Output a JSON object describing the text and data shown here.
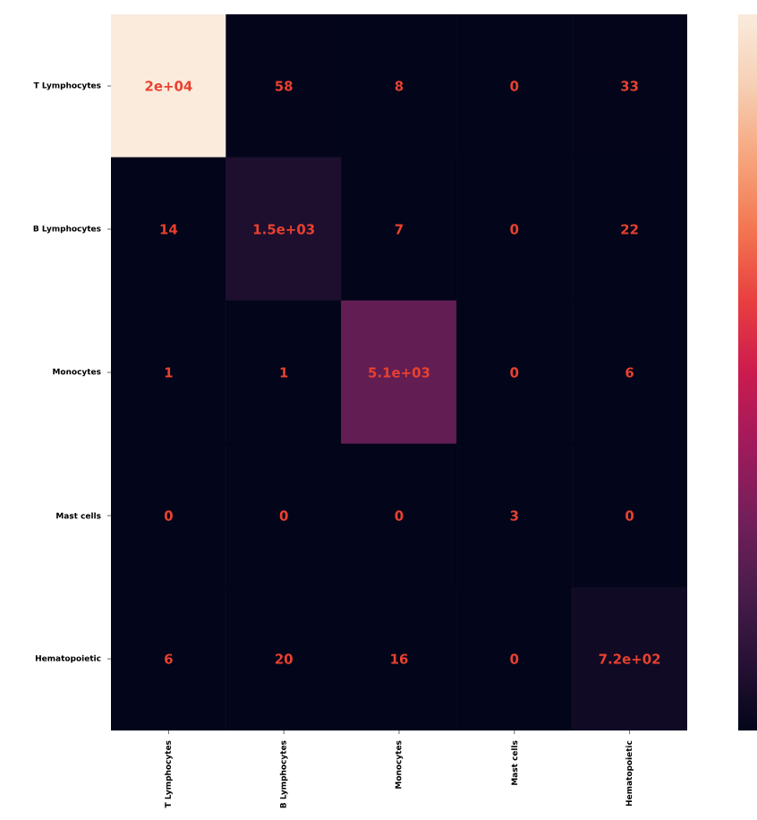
{
  "chart_data": {
    "type": "heatmap",
    "categories": [
      "T Lymphocytes",
      "B Lymphocytes",
      "Monocytes",
      "Mast cells",
      "Hematopoietic"
    ],
    "y_categories": [
      "T Lymphocytes",
      "B Lymphocytes",
      "Monocytes",
      "Mast cells",
      "Hematopoietic"
    ],
    "cells": [
      [
        20000,
        58,
        8,
        0,
        33
      ],
      [
        14,
        1500,
        7,
        0,
        22
      ],
      [
        1,
        1,
        5100,
        0,
        6
      ],
      [
        0,
        0,
        0,
        3,
        0
      ],
      [
        6,
        20,
        16,
        0,
        720
      ]
    ],
    "cell_labels": [
      [
        "2e+04",
        "58",
        "8",
        "0",
        "33"
      ],
      [
        "14",
        "1.5e+03",
        "7",
        "0",
        "22"
      ],
      [
        "1",
        "1",
        "5.1e+03",
        "0",
        "6"
      ],
      [
        "0",
        "0",
        "0",
        "3",
        "0"
      ],
      [
        "6",
        "20",
        "16",
        "0",
        "7.2e+02"
      ]
    ]
  }
}
